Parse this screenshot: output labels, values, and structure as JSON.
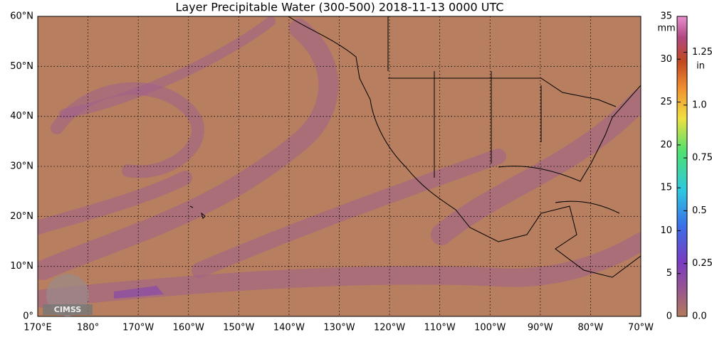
{
  "title": "Layer Precipitable Water (300-500)  2018-11-13 0000 UTC",
  "map": {
    "lat_labels": [
      "0°",
      "10°N",
      "20°N",
      "30°N",
      "40°N",
      "50°N",
      "60°N"
    ],
    "lon_labels": [
      "170°E",
      "180°",
      "170°W",
      "160°W",
      "150°W",
      "140°W",
      "130°W",
      "120°W",
      "110°W",
      "100°W",
      "90°W",
      "80°W",
      "70°W"
    ]
  },
  "colorbar": {
    "unit": "mm",
    "ylim": [
      0,
      35
    ],
    "yticks": [
      0,
      5,
      10,
      15,
      20,
      25,
      30,
      35
    ],
    "unit2": "in",
    "y2lim": [
      0,
      1.42
    ],
    "y2ticks": [
      {
        "value": 0,
        "label": "0.0"
      },
      0.25,
      0.5,
      0.75,
      {
        "value": 1,
        "label": "1.0"
      },
      1.25
    ]
  },
  "logo": "CIMSS"
}
